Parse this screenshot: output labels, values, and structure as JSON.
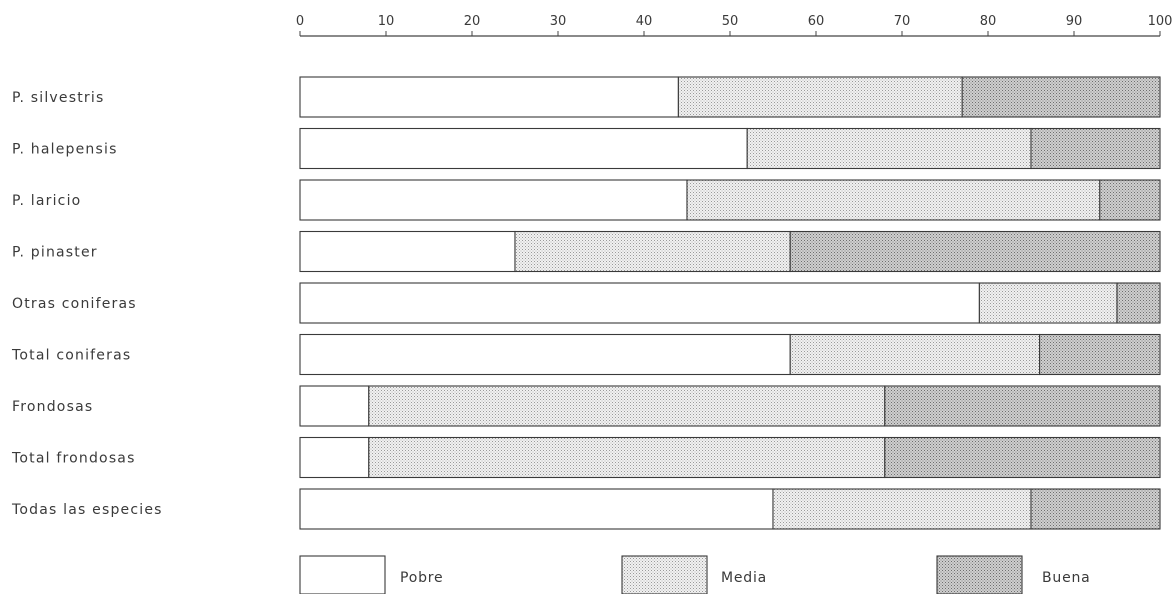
{
  "chart_data": {
    "type": "bar",
    "orientation": "horizontal",
    "stacked": true,
    "percent_stacked": true,
    "xlim": [
      0,
      100
    ],
    "xticks": [
      0,
      10,
      20,
      30,
      40,
      50,
      60,
      70,
      80,
      90,
      100
    ],
    "axis_position": "top",
    "grid": false,
    "legend_position": "bottom",
    "categories": [
      "P. silvestris",
      "P. halepensis",
      "P. laricio",
      "P. pinaster",
      "Otras coniferas",
      "Total coniferas",
      "Frondosas",
      "Total frondosas",
      "Todas las especies"
    ],
    "series": [
      {
        "name": "Pobre",
        "values": [
          44,
          52,
          45,
          25,
          79,
          57,
          8,
          8,
          55
        ],
        "color": "#ffffff"
      },
      {
        "name": "Media",
        "values": [
          33,
          33,
          48,
          32,
          16,
          29,
          60,
          60,
          30
        ],
        "color": "#e3e3e3"
      },
      {
        "name": "Buena",
        "values": [
          23,
          15,
          7,
          43,
          5,
          14,
          32,
          32,
          15
        ],
        "color": "#c4c4c4"
      }
    ]
  }
}
